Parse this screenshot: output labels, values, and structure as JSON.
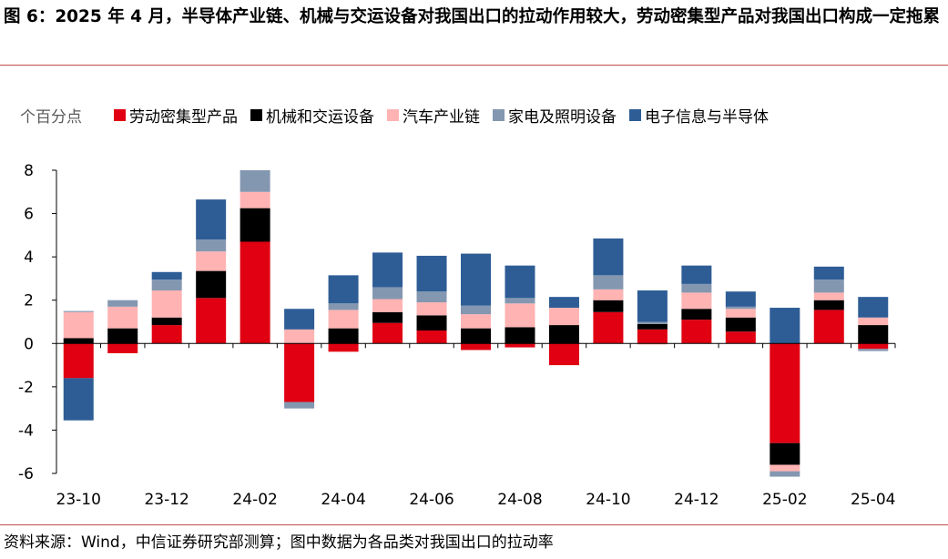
{
  "figure": {
    "title": "图 6：2025 年 4 月，半导体产业链、机械与交运设备对我国出口的拉动作用较大，劳动密集型产品对我国出口构成一定拖累",
    "source": "资料来源：Wind，中信证券研究部测算；图中数据为各品类对我国出口的拉动率"
  },
  "chart_data": {
    "type": "bar",
    "stacked": true,
    "unit_label": "个百分点",
    "categories": [
      "23-10",
      "23-11",
      "23-12",
      "24-01",
      "24-02",
      "24-03",
      "24-04",
      "24-05",
      "24-06",
      "24-07",
      "24-08",
      "24-09",
      "24-10",
      "24-11",
      "24-12",
      "25-01",
      "25-02",
      "25-03",
      "25-04"
    ],
    "x_tick_labels": [
      "23-10",
      "23-12",
      "24-02",
      "24-04",
      "24-06",
      "24-08",
      "24-10",
      "24-12",
      "25-02",
      "25-04"
    ],
    "x_tick_indices": [
      0,
      2,
      4,
      6,
      8,
      10,
      12,
      14,
      16,
      18
    ],
    "ylim": [
      -6,
      8
    ],
    "yticks": [
      -6,
      -4,
      -2,
      0,
      2,
      4,
      6,
      8
    ],
    "grid": false,
    "legend_position": "top",
    "series": [
      {
        "name": "劳动密集型产品",
        "color": "#e00012",
        "values": [
          -1.6,
          -0.45,
          0.85,
          2.1,
          4.7,
          -2.7,
          -0.38,
          0.95,
          0.6,
          -0.3,
          -0.18,
          -1.0,
          1.45,
          0.65,
          1.1,
          0.55,
          -4.6,
          1.55,
          -0.25
        ]
      },
      {
        "name": "机械和交运设备",
        "color": "#000000",
        "values": [
          0.25,
          0.7,
          0.35,
          1.25,
          1.55,
          0.0,
          0.7,
          0.5,
          0.7,
          0.7,
          0.75,
          0.85,
          0.55,
          0.25,
          0.5,
          0.65,
          -1.0,
          0.45,
          0.85
        ]
      },
      {
        "name": "汽车产业链",
        "color": "#ffb3b3",
        "values": [
          1.2,
          1.0,
          1.25,
          0.9,
          0.75,
          0.65,
          0.85,
          0.6,
          0.6,
          0.65,
          1.1,
          0.8,
          0.5,
          -0.05,
          0.75,
          0.4,
          -0.3,
          0.35,
          0.35
        ]
      },
      {
        "name": "家电及照明设备",
        "color": "#8497b0",
        "values": [
          0.05,
          0.3,
          0.5,
          0.55,
          1.0,
          -0.3,
          0.3,
          0.55,
          0.5,
          0.4,
          0.25,
          0.0,
          0.65,
          0.1,
          0.4,
          0.1,
          -0.25,
          0.6,
          -0.1
        ]
      },
      {
        "name": "电子信息与半导体",
        "color": "#2e5d96",
        "values": [
          -1.95,
          0.0,
          0.35,
          1.85,
          0.0,
          0.95,
          1.3,
          1.6,
          1.65,
          2.4,
          1.5,
          0.5,
          1.7,
          1.45,
          0.85,
          0.7,
          1.65,
          0.6,
          0.95
        ]
      }
    ]
  }
}
